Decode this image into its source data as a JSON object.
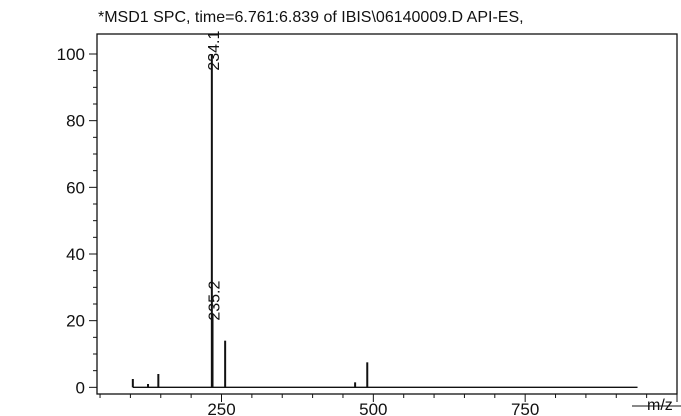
{
  "chart_data": {
    "type": "bar",
    "title": "*MSD1 SPC, time=6.761:6.839 of IBIS\\06140009.D    API-ES,",
    "xlabel": "m/z",
    "ylabel": "",
    "xlim": [
      45,
      1000
    ],
    "ylim": [
      -2,
      106
    ],
    "x_ticks": [
      250,
      500,
      750
    ],
    "y_ticks": [
      0,
      20,
      40,
      60,
      80,
      100
    ],
    "grid": false,
    "peak_annotations": [
      {
        "x": 234.1,
        "label": "234.1"
      },
      {
        "x": 235.2,
        "label": "235.2"
      }
    ],
    "points": [
      {
        "x": 104,
        "y": 2.5
      },
      {
        "x": 129,
        "y": 1.0
      },
      {
        "x": 146,
        "y": 4.0
      },
      {
        "x": 234.1,
        "y": 100
      },
      {
        "x": 235.2,
        "y": 22
      },
      {
        "x": 256,
        "y": 14
      },
      {
        "x": 470,
        "y": 1.5
      },
      {
        "x": 490,
        "y": 7.5
      }
    ],
    "baseline": {
      "x_start": 104,
      "x_end": 935
    }
  }
}
